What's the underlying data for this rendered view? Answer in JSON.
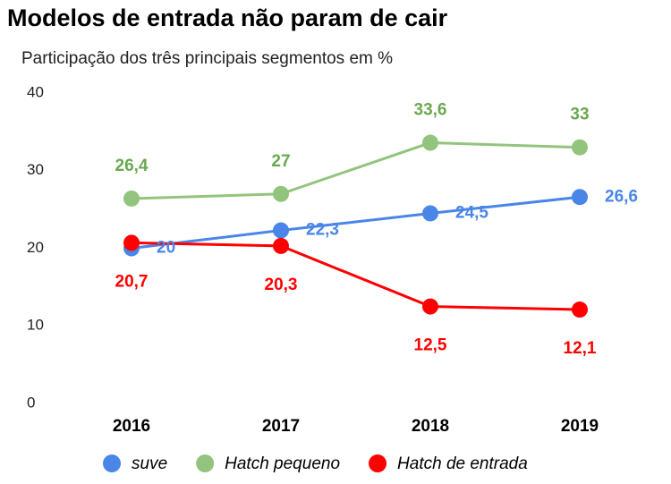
{
  "chart_data": {
    "type": "line",
    "title": "Modelos de entrada não param de cair",
    "subtitle": "Participação dos três principais segmentos em %",
    "categories": [
      "2016",
      "2017",
      "2018",
      "2019"
    ],
    "ylim": [
      0,
      40
    ],
    "yticks": [
      0,
      10,
      20,
      30,
      40
    ],
    "grid": false,
    "legend": "bottom",
    "series": [
      {
        "name": "suve",
        "color": "#4a86e8",
        "label_color": "#4a86e8",
        "label_position": "right",
        "values": [
          20,
          22.3,
          24.5,
          26.6
        ],
        "value_labels": [
          "20",
          "22,3",
          "24,5",
          "26,6"
        ]
      },
      {
        "name": "Hatch pequeno",
        "color": "#93c47d",
        "label_color": "#6aa84f",
        "label_position": "above",
        "values": [
          26.4,
          27,
          33.6,
          33
        ],
        "value_labels": [
          "26,4",
          "27",
          "33,6",
          "33"
        ]
      },
      {
        "name": "Hatch de entrada",
        "color": "#ff0000",
        "label_color": "#ff0000",
        "label_position": "below",
        "values": [
          20.7,
          20.3,
          12.5,
          12.1
        ],
        "value_labels": [
          "20,7",
          "20,3",
          "12,5",
          "12,1"
        ]
      }
    ]
  }
}
